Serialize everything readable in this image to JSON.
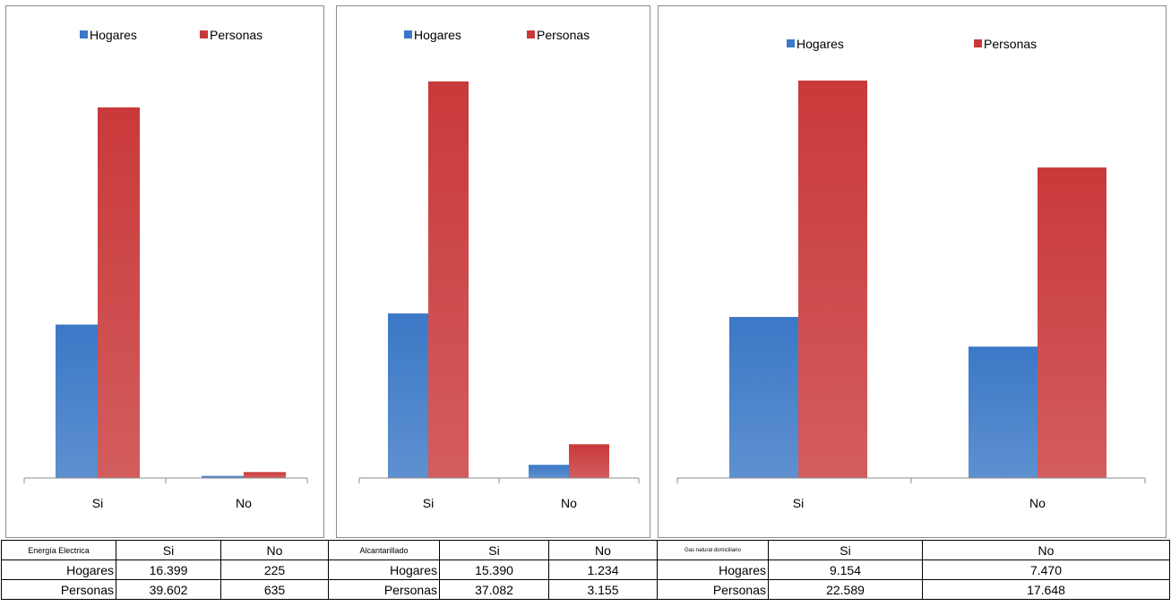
{
  "colors": {
    "hogares": "#3b78c6",
    "personas": "#c9393a",
    "axis": "#8c8c8c"
  },
  "chart_data": [
    {
      "type": "bar",
      "categories": [
        "Si",
        "No"
      ],
      "series": [
        {
          "name": "Hogares",
          "values": [
            16399,
            225
          ]
        },
        {
          "name": "Personas",
          "values": [
            39602,
            635
          ]
        }
      ],
      "legend": "top"
    },
    {
      "type": "bar",
      "categories": [
        "Si",
        "No"
      ],
      "series": [
        {
          "name": "Hogares",
          "values": [
            15390,
            1234
          ]
        },
        {
          "name": "Personas",
          "values": [
            37082,
            3155
          ]
        }
      ],
      "legend": "top"
    },
    {
      "type": "bar",
      "categories": [
        "Si",
        "No"
      ],
      "series": [
        {
          "name": "Hogares",
          "values": [
            9154,
            7470
          ]
        },
        {
          "name": "Personas",
          "values": [
            22589,
            17648
          ]
        }
      ],
      "legend": "top"
    }
  ],
  "tables": [
    {
      "header": [
        "Energía Electrica",
        "Si",
        "No"
      ],
      "rows": [
        [
          "Hogares",
          "16.399",
          "225"
        ],
        [
          "Personas",
          "39.602",
          "635"
        ]
      ]
    },
    {
      "header": [
        "Alcantarillado",
        "Si",
        "No"
      ],
      "rows": [
        [
          "Hogares",
          "15.390",
          "1.234"
        ],
        [
          "Personas",
          "37.082",
          "3.155"
        ]
      ]
    },
    {
      "header": [
        "Gas natural domiciliario",
        "Si",
        "No"
      ],
      "rows": [
        [
          "Hogares",
          "9.154",
          "7.470"
        ],
        [
          "Personas",
          "22.589",
          "17.648"
        ]
      ]
    }
  ]
}
